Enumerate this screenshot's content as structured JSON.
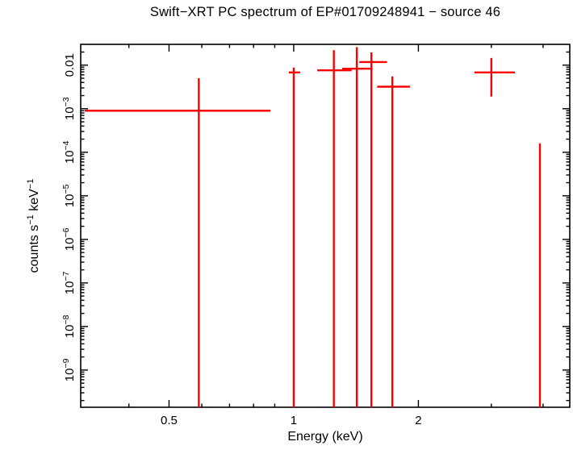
{
  "colors": {
    "background": "#ffffff",
    "frame": "#000000",
    "data": "#ff0000",
    "text": "#000000"
  },
  "ylabel_parts": [
    {
      "text": "counts s"
    },
    {
      "text": "−1",
      "sup": true
    },
    {
      "text": " keV",
      "sup": false
    },
    {
      "text": "−1",
      "sup": true
    }
  ],
  "chart_data": {
    "type": "scatter",
    "title": "Swift−XRT PC spectrum of EP#01709248941 − source 46",
    "xlabel": "Energy (keV)",
    "ylabel": "counts s−1 keV−1",
    "x_scale": "log",
    "y_scale": "log",
    "xlim": [
      0.306,
      4.64
    ],
    "ylim": [
      1.4e-10,
      0.03
    ],
    "grid": false,
    "legend": false,
    "marker": "cross-with-error-bars",
    "series_color": "#ff0000",
    "x_ticks": [
      {
        "value": 0.5,
        "label": "0.5"
      },
      {
        "value": 1,
        "label": "1"
      },
      {
        "value": 2,
        "label": "2"
      }
    ],
    "x_minor_ticks": [
      0.4,
      0.6,
      0.7,
      0.8,
      0.9,
      3,
      4
    ],
    "y_ticks": [
      {
        "value": 0.01,
        "label": "0.01"
      },
      {
        "value": 0.001,
        "base": "10",
        "exp": "−3"
      },
      {
        "value": 0.0001,
        "base": "10",
        "exp": "−4"
      },
      {
        "value": 1e-05,
        "base": "10",
        "exp": "−5"
      },
      {
        "value": 1e-06,
        "base": "10",
        "exp": "−6"
      },
      {
        "value": 1e-07,
        "base": "10",
        "exp": "−7"
      },
      {
        "value": 1e-08,
        "base": "10",
        "exp": "−8"
      },
      {
        "value": 1e-09,
        "base": "10",
        "exp": "−9"
      }
    ],
    "points": [
      {
        "x": 0.59,
        "x_lo": 0.313,
        "x_hi": 0.878,
        "y": 0.0009,
        "y_hi": 0.005,
        "y_lo": null
      },
      {
        "x": 1.0,
        "x_lo": 0.973,
        "x_hi": 1.036,
        "y": 0.0068,
        "y_hi": 0.0088,
        "y_lo": null
      },
      {
        "x": 1.25,
        "x_lo": 1.14,
        "x_hi": 1.38,
        "y": 0.0076,
        "y_hi": 0.022,
        "y_lo": null
      },
      {
        "x": 1.42,
        "x_lo": 1.31,
        "x_hi": 1.55,
        "y": 0.0083,
        "y_hi": 0.026,
        "y_lo": null
      },
      {
        "x": 1.54,
        "x_lo": 1.44,
        "x_hi": 1.68,
        "y": 0.0118,
        "y_hi": 0.0196,
        "y_lo": null
      },
      {
        "x": 1.73,
        "x_lo": 1.59,
        "x_hi": 1.91,
        "y": 0.0032,
        "y_hi": 0.0055,
        "y_lo": null
      },
      {
        "x": 3.0,
        "x_lo": 2.73,
        "x_hi": 3.42,
        "y": 0.0068,
        "y_hi": 0.0146,
        "y_lo": 0.0019
      },
      {
        "x": 3.93,
        "x_lo": null,
        "x_hi": null,
        "y": 0.00016,
        "y_hi": null,
        "y_lo": null
      }
    ]
  }
}
